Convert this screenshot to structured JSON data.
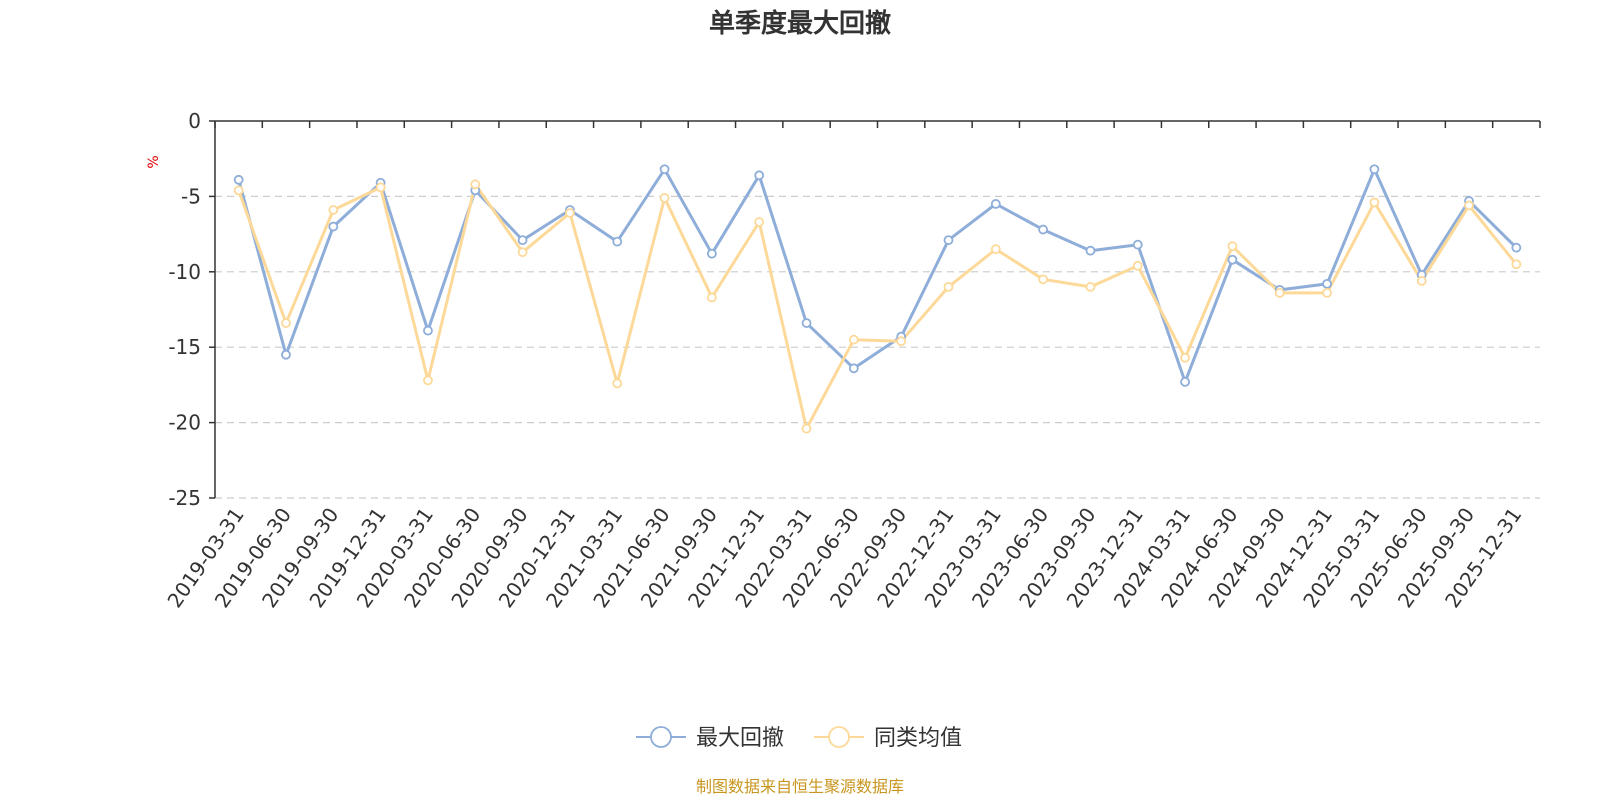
{
  "chart_data": {
    "type": "line",
    "title": "单季度最大回撤",
    "ylabel": "%",
    "ylim": [
      -25,
      0
    ],
    "yticks": [
      "0",
      "-5",
      "-10",
      "-15",
      "-20",
      "-25"
    ],
    "grid": true,
    "legend_position": "bottom-center",
    "categories": [
      "2019-03-31",
      "2019-06-30",
      "2019-09-30",
      "2019-12-31",
      "2020-03-31",
      "2020-06-30",
      "2020-09-30",
      "2020-12-31",
      "2021-03-31",
      "2021-06-30",
      "2021-09-30",
      "2021-12-31",
      "2022-03-31",
      "2022-06-30",
      "2022-09-30",
      "2022-12-31",
      "2023-03-31",
      "2023-06-30",
      "2023-09-30",
      "2023-12-31",
      "2024-03-31",
      "2024-06-30",
      "2024-09-30",
      "2024-12-31",
      "2025-03-31",
      "2025-06-30",
      "2025-09-30",
      "2025-12-31"
    ],
    "series": [
      {
        "name": "最大回撤",
        "color": "#8eadd9",
        "values": [
          -3.9,
          -15.5,
          -7.0,
          -4.1,
          -13.9,
          -4.6,
          -7.9,
          -5.9,
          -8.0,
          -3.2,
          -8.8,
          -3.6,
          -13.4,
          -16.4,
          -14.3,
          -7.9,
          -5.5,
          -7.2,
          -8.6,
          -8.2,
          -17.3,
          -9.2,
          -11.2,
          -10.8,
          -3.2,
          -10.2,
          -5.3,
          -8.4
        ]
      },
      {
        "name": "同类均值",
        "color": "#fdd999",
        "values": [
          -4.6,
          -13.4,
          -5.9,
          -4.4,
          -17.2,
          -4.2,
          -8.7,
          -6.1,
          -17.4,
          -5.1,
          -11.7,
          -6.7,
          -20.4,
          -14.5,
          -14.6,
          -11.0,
          -8.5,
          -10.5,
          -11.0,
          -9.6,
          -15.7,
          -8.3,
          -11.4,
          -11.4,
          -5.4,
          -10.6,
          -5.6,
          -9.5
        ]
      }
    ]
  },
  "footer": {
    "source": "制图数据来自恒生聚源数据库"
  }
}
